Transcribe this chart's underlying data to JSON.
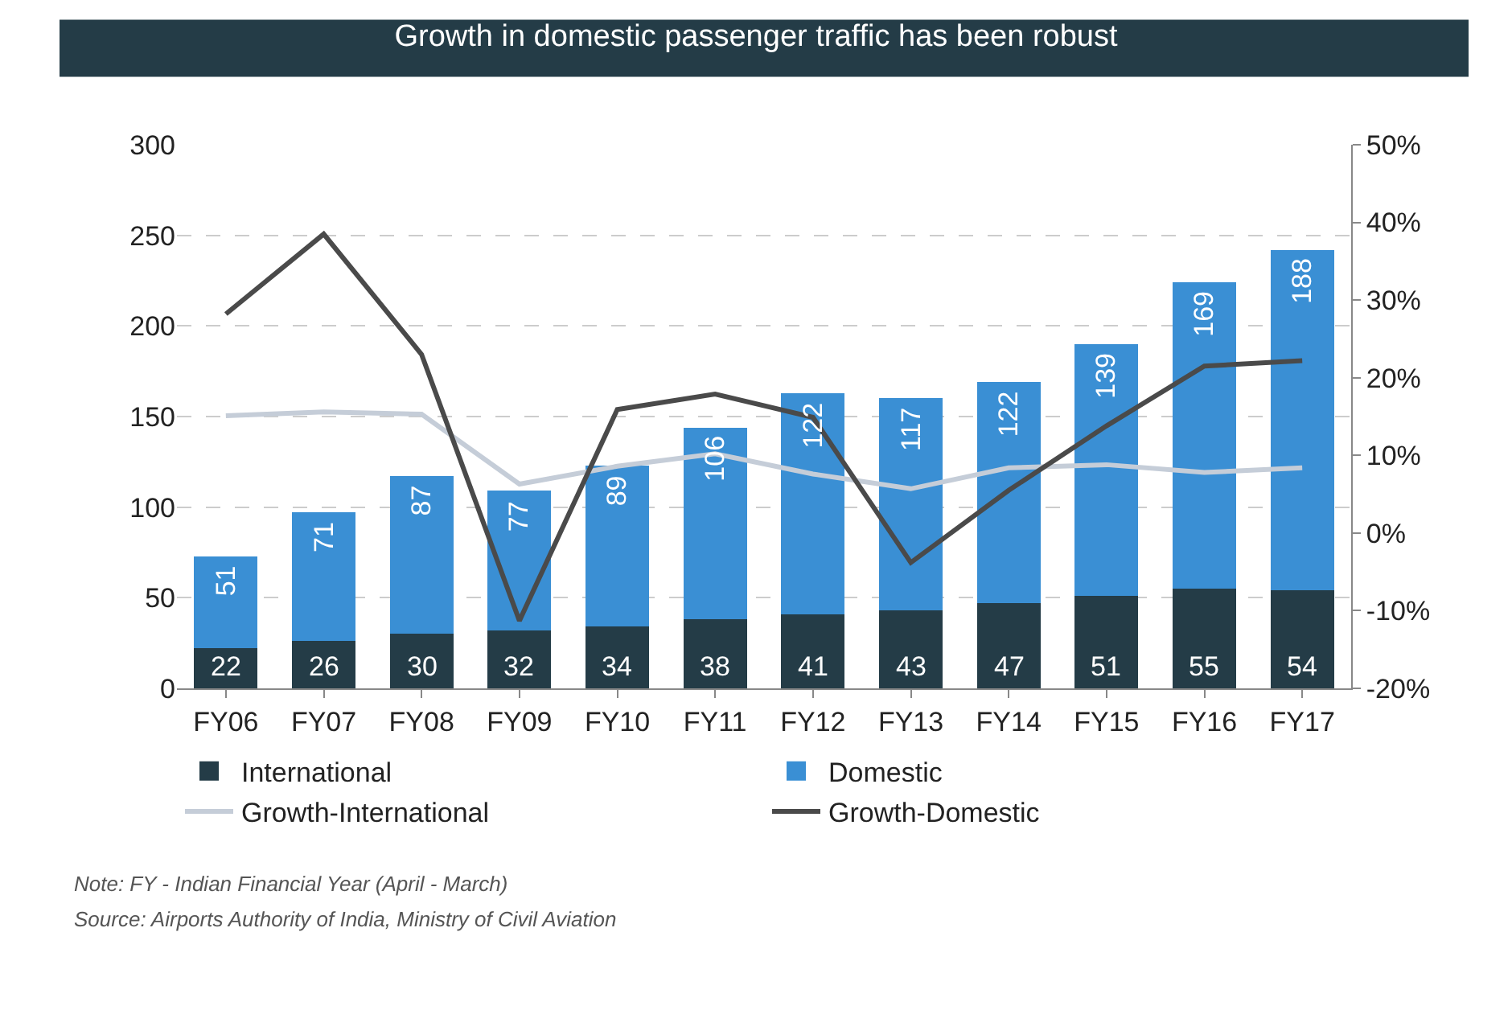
{
  "chart_data": {
    "type": "bar",
    "title": "Growth in domestic passenger traffic has been robust",
    "categories": [
      "FY06",
      "FY07",
      "FY08",
      "FY09",
      "FY10",
      "FY11",
      "FY12",
      "FY13",
      "FY14",
      "FY15",
      "FY16",
      "FY17"
    ],
    "stacked": true,
    "series": [
      {
        "name": "International",
        "color": "#243c47",
        "values": [
          22,
          26,
          30,
          32,
          34,
          38,
          41,
          43,
          47,
          51,
          55,
          54
        ],
        "value_labels": [
          "22",
          "26",
          "30",
          "32",
          "34",
          "38",
          "41",
          "43",
          "47",
          "51",
          "55",
          "54"
        ]
      },
      {
        "name": "Domestic",
        "color": "#3a8fd4",
        "values": [
          51,
          71,
          87,
          77,
          89,
          106,
          122,
          117,
          122,
          139,
          169,
          188
        ],
        "value_labels": [
          "51",
          "71",
          "87",
          "77",
          "89",
          "106",
          "122",
          "117",
          "122",
          "139",
          "169",
          "188"
        ]
      },
      {
        "name": "Growth-International",
        "type": "line",
        "axis": "y2",
        "color": "#c5cdd8",
        "values": [
          15.1,
          15.6,
          15.3,
          6.3,
          8.6,
          10.2,
          7.6,
          5.7,
          8.4,
          8.8,
          7.8,
          8.4
        ]
      },
      {
        "name": "Growth-Domestic",
        "type": "line",
        "axis": "y2",
        "color": "#4a4a4a",
        "values": [
          28.2,
          38.5,
          23,
          -11.3,
          15.9,
          17.9,
          14.9,
          -3.8,
          5.5,
          13.8,
          21.5,
          22.2
        ]
      }
    ],
    "ylim": [
      0,
      300
    ],
    "yticks": [
      0,
      50,
      100,
      150,
      200,
      250,
      300
    ],
    "y2lim": [
      -20,
      50
    ],
    "y2ticks": [
      {
        "value": -20,
        "label": "-20%"
      },
      {
        "value": -10,
        "label": "-10%"
      },
      {
        "value": 0,
        "label": "0%"
      },
      {
        "value": 10,
        "label": "10%"
      },
      {
        "value": 20,
        "label": "20%"
      },
      {
        "value": 30,
        "label": "30%"
      },
      {
        "value": 40,
        "label": "40%"
      },
      {
        "value": 50,
        "label": "50%"
      }
    ],
    "grid": "y",
    "line_style": "solid",
    "marker": "none",
    "legend": "bottom",
    "annotations": [
      "Note: FY - Indian Financial Year (April - March)",
      "Source: Airports Authority of India, Ministry of Civil Aviation"
    ]
  }
}
